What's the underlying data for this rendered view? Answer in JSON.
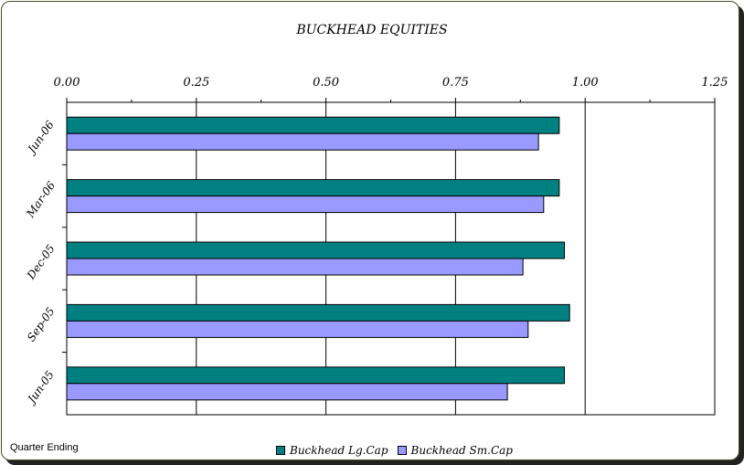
{
  "chart_data": {
    "type": "bar",
    "orientation": "horizontal",
    "title": "BUCKHEAD EQUITIES",
    "xlabel": "",
    "ylabel": "",
    "categories": [
      "Jun-06",
      "Mar-06",
      "Dec-05",
      "Sep-05",
      "Jun-05"
    ],
    "series": [
      {
        "name": "Buckhead Lg.Cap",
        "color": "#008080",
        "values": [
          0.95,
          0.95,
          0.96,
          0.97,
          0.96
        ]
      },
      {
        "name": "Buckhead Sm.Cap",
        "color": "#9999FF",
        "values": [
          0.91,
          0.92,
          0.88,
          0.89,
          0.85
        ]
      }
    ],
    "xlim": [
      0,
      1.25
    ],
    "xticks": [
      "0.00",
      "0.25",
      "0.50",
      "0.75",
      "1.00",
      "1.25"
    ],
    "grid": true,
    "axis_position": "top",
    "legend_position": "bottom"
  },
  "footer": {
    "label": "Quarter Ending"
  }
}
